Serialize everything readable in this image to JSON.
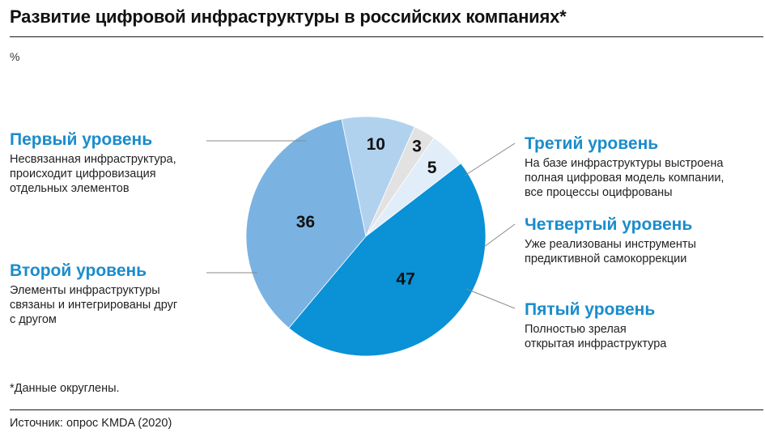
{
  "title": "Развитие цифровой инфраструктуры в российских компаниях*",
  "unit": "%",
  "footnote": "*Данные округлены.",
  "source": "Источник: опрос KMDA (2020)",
  "chart_data": {
    "type": "pie",
    "unit": "%",
    "slices": [
      {
        "label": "Первый уровень",
        "description": "Несвязанная инфраструктура, происходит цифровизация отдельных элементов",
        "value": 36,
        "color": "#7ab3e2",
        "text": "36"
      },
      {
        "label": "Третий уровень",
        "description": "На базе инфраструктуры выстроена полная цифровая модель компании, все процессы оцифрованы",
        "value": 10,
        "color": "#b1d2ef",
        "text": "10"
      },
      {
        "label": "Четвертый уровень",
        "description": "Уже реализованы инструменты предиктивной самокоррекции",
        "value": 3,
        "color": "#e2e2e2",
        "text": "3"
      },
      {
        "label": "Пятый уровень",
        "description": "Полностью зрелая открытая инфраструктура",
        "value": 5,
        "color": "#e1eef9",
        "text": "5"
      },
      {
        "label": "Второй уровень",
        "description": "Элементы инфраструктуры связаны и интегрированы друг с другом",
        "value": 47,
        "color": "#0a91d6",
        "text": "47"
      }
    ]
  },
  "labels": {
    "first": {
      "head": "Первый уровень",
      "lines": [
        "Несвязанная инфраструктура,",
        "происходит цифровизация",
        "отдельных элементов"
      ]
    },
    "second": {
      "head": "Второй уровень",
      "lines": [
        "Элементы инфраструктуры",
        "связаны и интегрированы друг",
        "с другом"
      ]
    },
    "third": {
      "head": "Третий уровень",
      "lines": [
        "На базе инфраструктуры выстроена",
        "полная цифровая модель компании,",
        "все процессы оцифрованы"
      ]
    },
    "fourth": {
      "head": "Четвертый уровень",
      "lines": [
        "Уже реализованы инструменты",
        "предиктивной самокоррекции"
      ]
    },
    "fifth": {
      "head": "Пятый уровень",
      "lines": [
        "Полностью зрелая",
        "открытая инфраструктура"
      ]
    }
  }
}
